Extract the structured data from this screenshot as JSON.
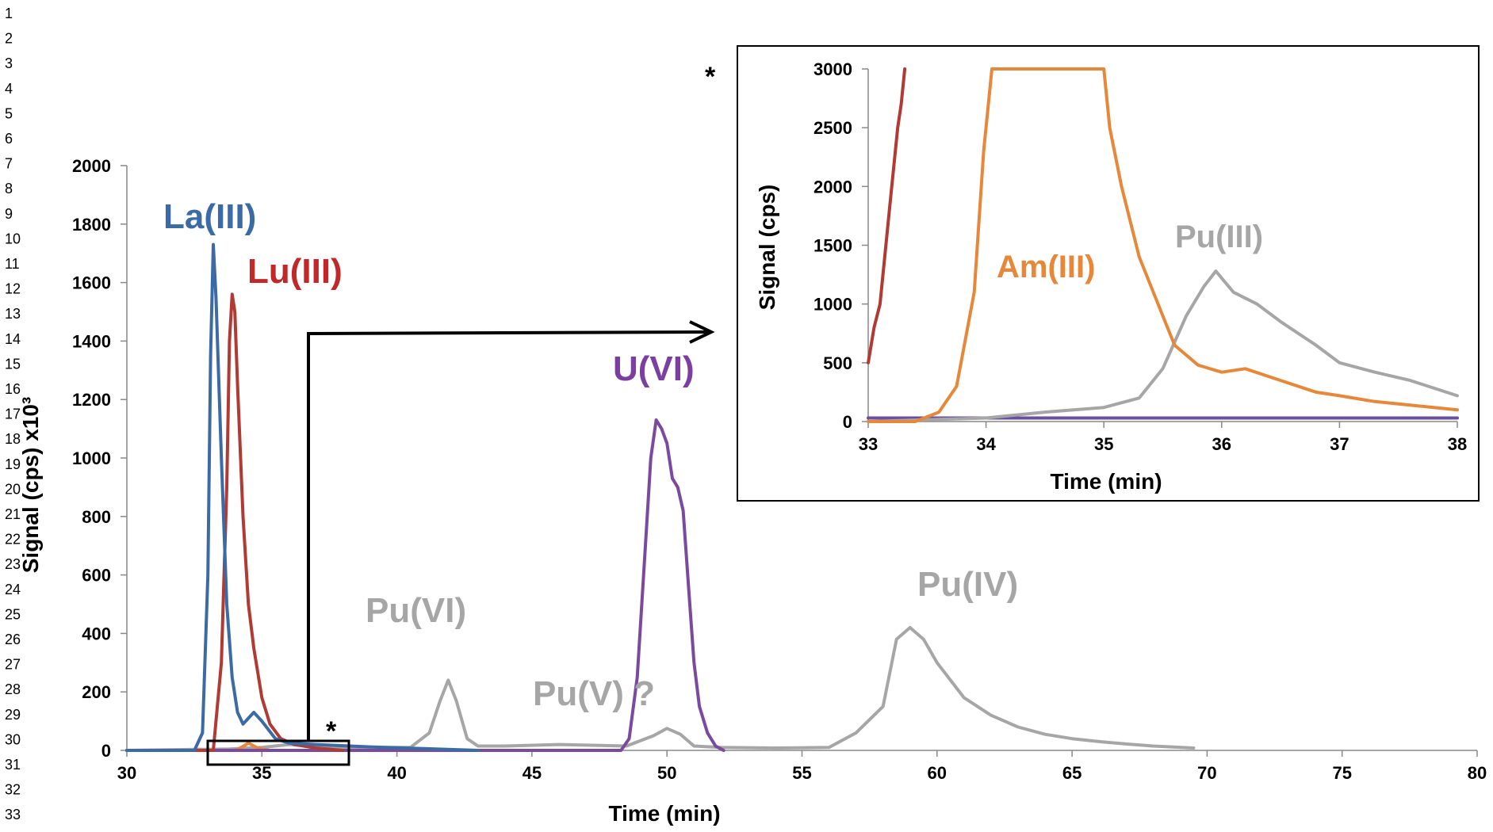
{
  "line_numbers": [
    "1",
    "2",
    "3",
    "4",
    "5",
    "6",
    "7",
    "8",
    "9",
    "10",
    "11",
    "12",
    "13",
    "14",
    "15",
    "16",
    "17",
    "18",
    "19",
    "20",
    "21",
    "22",
    "23",
    "24",
    "25",
    "26",
    "27",
    "28",
    "29",
    "30",
    "31",
    "32",
    "33"
  ],
  "colors": {
    "La(III)": "#3b6aa5",
    "Lu(III)": "#b03a34",
    "U(VI)": "#7a4a9e",
    "Pu": "#a6a6a6",
    "Am(III)": "#e6873a"
  },
  "chart_data": [
    {
      "type": "line",
      "xlabel": "Time (min)",
      "ylabel": "Signal (cps) x10³",
      "xlim": [
        30,
        80
      ],
      "ylim": [
        0,
        2000
      ],
      "xticks": [
        30,
        35,
        40,
        45,
        50,
        55,
        60,
        65,
        70,
        75,
        80
      ],
      "yticks": [
        0,
        200,
        400,
        600,
        800,
        1000,
        1200,
        1400,
        1600,
        1800,
        2000
      ],
      "annotations": [
        "La(III)",
        "Lu(III)",
        "U(VI)",
        "Pu(VI)",
        "Pu(V) ?",
        "Pu(IV)",
        "*"
      ],
      "series": [
        {
          "name": "La(III)",
          "x": [
            30,
            32.5,
            32.8,
            33.0,
            33.1,
            33.2,
            33.3,
            33.5,
            33.7,
            33.9,
            34.1,
            34.3,
            34.5,
            34.7,
            35.0,
            35.5,
            36.0,
            37.0,
            39.0,
            41.0,
            43.0
          ],
          "y": [
            0,
            0,
            60,
            600,
            1350,
            1730,
            1550,
            1000,
            500,
            250,
            130,
            90,
            110,
            130,
            100,
            40,
            25,
            20,
            12,
            6,
            0
          ]
        },
        {
          "name": "Lu(III)",
          "x": [
            30,
            33.2,
            33.5,
            33.7,
            33.8,
            33.9,
            34.0,
            34.1,
            34.3,
            34.5,
            34.7,
            35.0,
            35.3,
            35.7,
            36.2,
            37.0,
            38.0
          ],
          "y": [
            0,
            0,
            300,
            900,
            1400,
            1560,
            1500,
            1250,
            800,
            500,
            350,
            180,
            90,
            40,
            20,
            8,
            0
          ]
        },
        {
          "name": "U(VI)",
          "x": [
            30,
            48.3,
            48.6,
            48.9,
            49.2,
            49.4,
            49.6,
            49.8,
            50.0,
            50.2,
            50.4,
            50.6,
            50.8,
            51.0,
            51.2,
            51.5,
            51.8,
            52.1
          ],
          "y": [
            0,
            0,
            40,
            250,
            700,
            1000,
            1130,
            1100,
            1050,
            930,
            900,
            820,
            560,
            300,
            150,
            60,
            15,
            0
          ]
        },
        {
          "name": "Pu",
          "x": [
            30,
            33.8,
            35.0,
            36.0,
            37.0,
            38.0,
            40.5,
            41.2,
            41.6,
            41.9,
            42.2,
            42.6,
            43.0,
            44.0,
            46.0,
            48.5,
            49.5,
            50.0,
            50.5,
            51.0,
            52.0,
            54.0,
            56.0,
            57.0,
            58.0,
            58.5,
            59.0,
            59.5,
            60.0,
            61.0,
            62.0,
            63.0,
            64.0,
            65.0,
            66.0,
            67.0,
            68.0,
            69.5
          ],
          "y": [
            0,
            5,
            10,
            20,
            15,
            10,
            10,
            60,
            170,
            240,
            170,
            40,
            15,
            15,
            20,
            15,
            50,
            75,
            55,
            15,
            10,
            8,
            10,
            60,
            150,
            380,
            420,
            380,
            300,
            180,
            120,
            80,
            55,
            40,
            30,
            22,
            15,
            8
          ]
        },
        {
          "name": "Am(III)",
          "x": [
            30,
            34.0,
            34.2,
            34.5,
            34.8,
            35.0,
            35.3
          ],
          "y": [
            0,
            0,
            8,
            25,
            10,
            5,
            0
          ]
        }
      ]
    },
    {
      "type": "line",
      "xlabel": "Time (min)",
      "ylabel": "Signal (cps)",
      "xlim": [
        33,
        38
      ],
      "ylim": [
        0,
        3000
      ],
      "xticks": [
        33,
        34,
        35,
        36,
        37,
        38
      ],
      "yticks": [
        0,
        500,
        1000,
        1500,
        2000,
        2500,
        3000
      ],
      "annotations": [
        "Am(III)",
        "Pu(III)",
        "*"
      ],
      "series": [
        {
          "name": "Lu(III)",
          "x": [
            33.0,
            33.05,
            33.1,
            33.15,
            33.2,
            33.25,
            33.28,
            33.31
          ],
          "y": [
            500,
            800,
            1000,
            1500,
            2000,
            2500,
            2700,
            3000
          ]
        },
        {
          "name": "Am(III)",
          "x": [
            33.0,
            33.4,
            33.6,
            33.75,
            33.9,
            33.98,
            34.05,
            35.0,
            35.05,
            35.15,
            35.3,
            35.5,
            35.6,
            35.8,
            36.0,
            36.2,
            36.5,
            36.8,
            37.0,
            37.3,
            37.6,
            38.0
          ],
          "y": [
            0,
            0,
            80,
            300,
            1100,
            2300,
            3000,
            3000,
            2500,
            2000,
            1400,
            900,
            650,
            480,
            420,
            450,
            350,
            250,
            220,
            170,
            140,
            100
          ]
        },
        {
          "name": "Pu(III)",
          "x": [
            33.0,
            34.0,
            34.5,
            35.0,
            35.3,
            35.5,
            35.7,
            35.85,
            35.95,
            36.1,
            36.3,
            36.5,
            36.8,
            37.0,
            37.3,
            37.6,
            38.0
          ],
          "y": [
            0,
            30,
            80,
            120,
            200,
            450,
            900,
            1150,
            1280,
            1100,
            1000,
            850,
            650,
            500,
            420,
            350,
            220
          ]
        },
        {
          "name": "baseline",
          "x": [
            33.0,
            38.0
          ],
          "y": [
            30,
            30
          ]
        }
      ]
    }
  ],
  "labels": {
    "la": "La(III)",
    "lu": "Lu(III)",
    "u6": "U(VI)",
    "pu6": "Pu(VI)",
    "pu5": "Pu(V) ?",
    "pu4": "Pu(IV)",
    "am3": "Am(III)",
    "pu3": "Pu(III)",
    "star": "*"
  }
}
